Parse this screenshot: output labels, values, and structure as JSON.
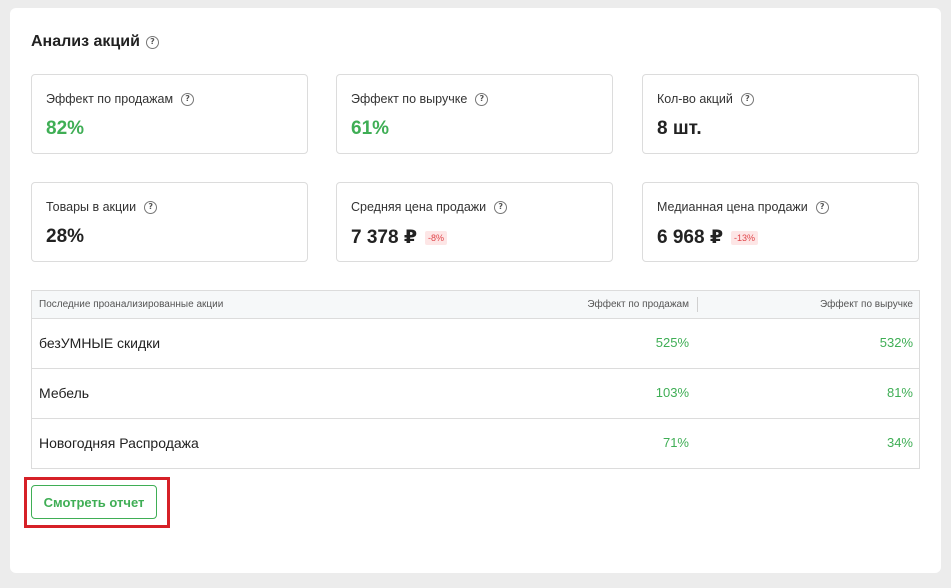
{
  "header": {
    "title": "Анализ акций"
  },
  "cards": [
    {
      "label": "Эффект по продажам",
      "value": "82%",
      "badge": ""
    },
    {
      "label": "Эффект по выручке",
      "value": "61%",
      "badge": ""
    },
    {
      "label": "Кол-во акций",
      "value": "8 шт.",
      "badge": ""
    },
    {
      "label": "Товары в акции",
      "value": "28%",
      "badge": ""
    },
    {
      "label": "Средняя цена продажи",
      "value": "7 378 ₽",
      "badge": "-8%"
    },
    {
      "label": "Медианная цена продажи",
      "value": "6 968 ₽",
      "badge": "-13%"
    }
  ],
  "table": {
    "headers": [
      "Последние проанализированные акции",
      "Эффект по продажам",
      "Эффект по выручке"
    ],
    "rows": [
      {
        "name": "безУМНЫЕ скидки",
        "sales": "525%",
        "revenue": "532%"
      },
      {
        "name": "Мебель",
        "sales": "103%",
        "revenue": "81%"
      },
      {
        "name": "Новогодняя Распродажа",
        "sales": "71%",
        "revenue": "34%"
      }
    ]
  },
  "actions": {
    "report_label": "Смотреть отчет"
  },
  "colors": {
    "accent": "#3fae55",
    "negative": "#e0454a",
    "highlight": "#d62027"
  }
}
